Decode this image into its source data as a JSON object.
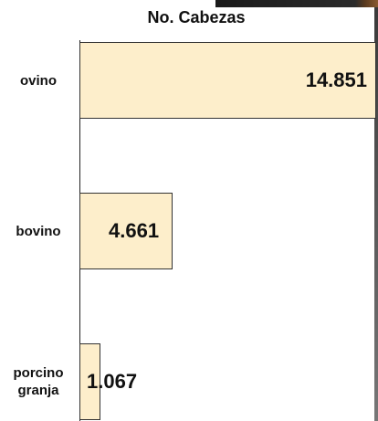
{
  "chart_data": {
    "type": "bar",
    "orientation": "horizontal",
    "title": "No. Cabezas",
    "categories": [
      "ovino",
      "bovino",
      "porcino granja"
    ],
    "category_lines": [
      [
        "ovino"
      ],
      [
        "bovino"
      ],
      [
        "porcino",
        "granja"
      ]
    ],
    "values": [
      14851,
      4661,
      1067
    ],
    "value_labels": [
      "14.851",
      "4.661",
      "1.067"
    ],
    "xlim": [
      0,
      14851
    ],
    "bar_color": "#fdeecb",
    "grid": false,
    "legend": "none"
  }
}
